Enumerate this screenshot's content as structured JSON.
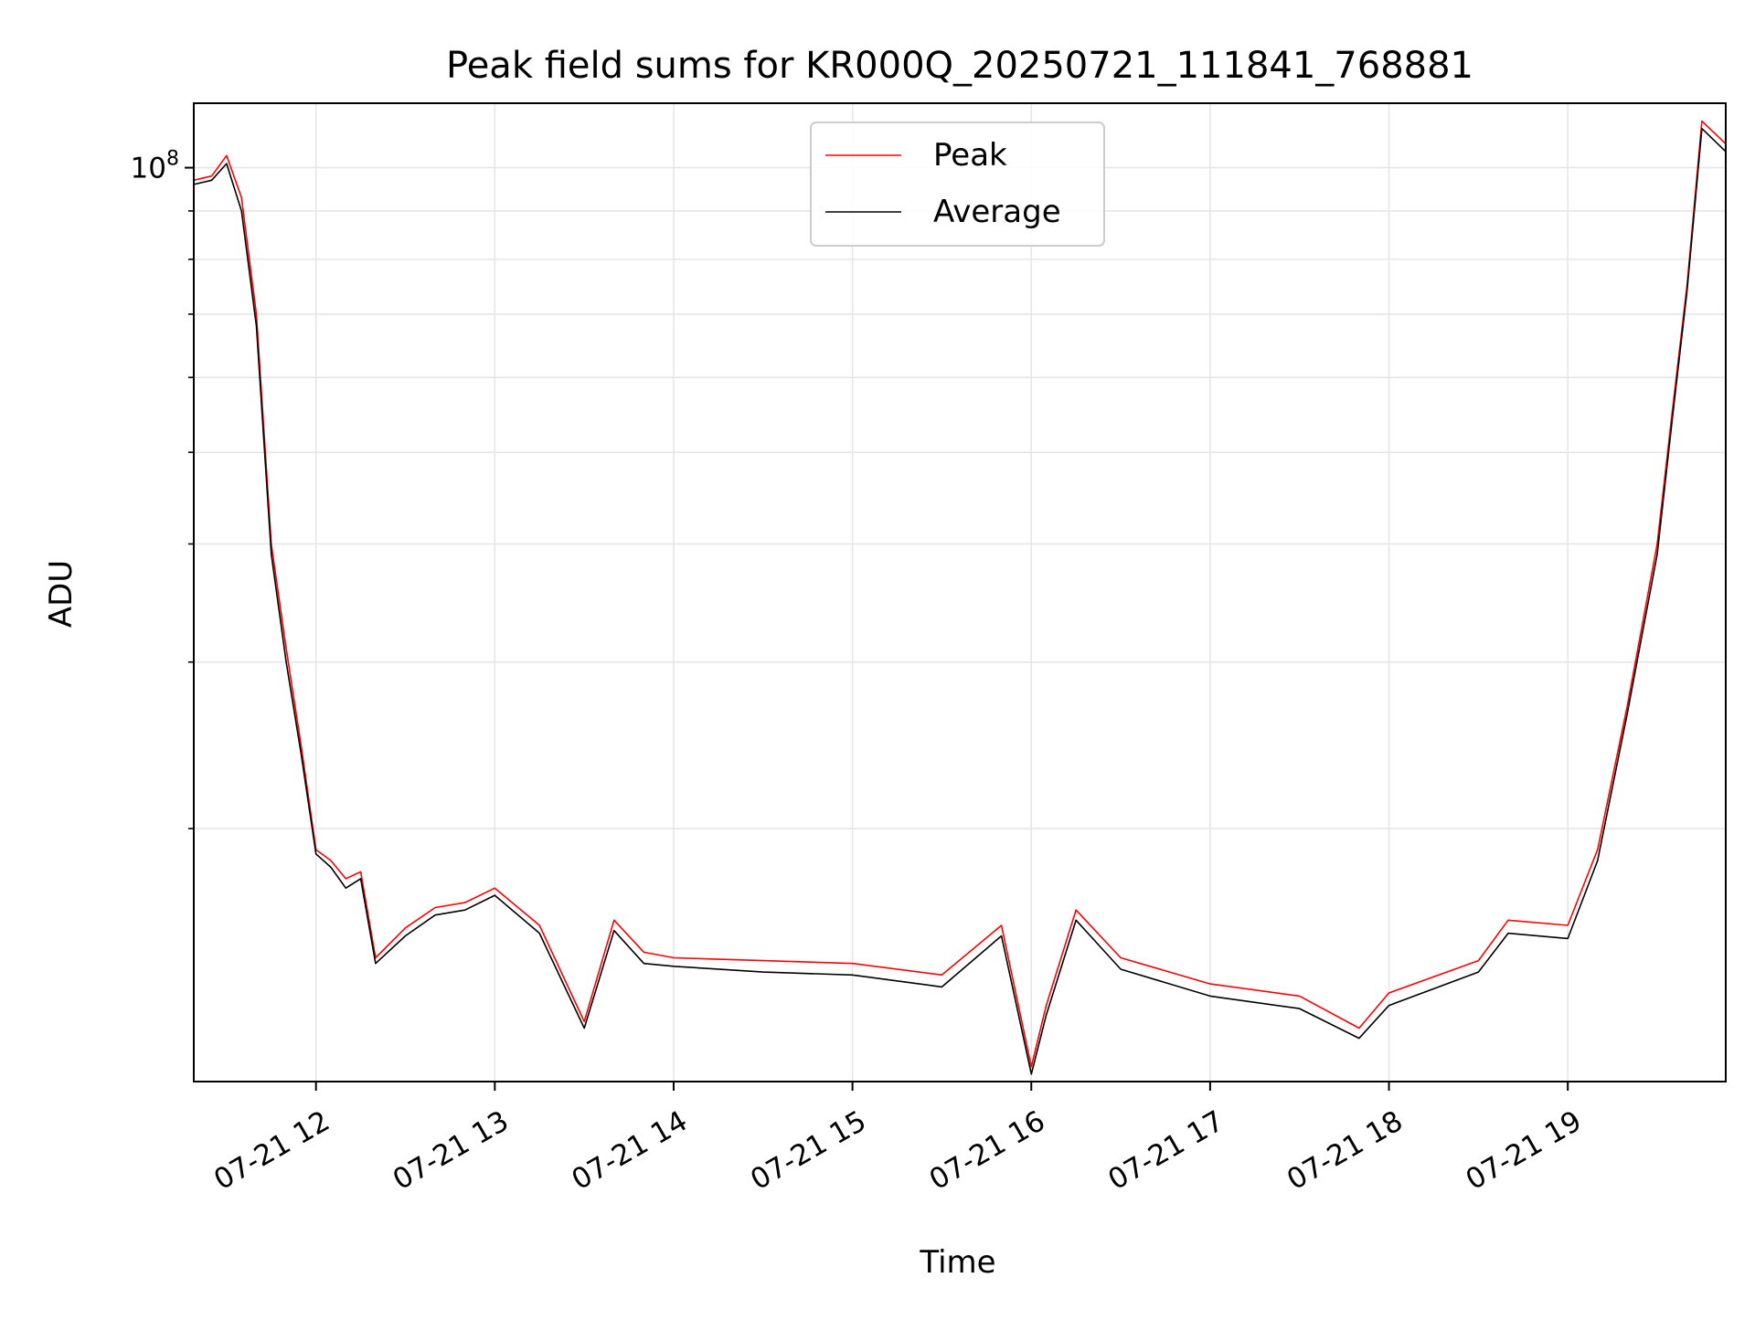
{
  "chart_data": {
    "type": "line",
    "title": "Peak field sums for KR000Q_20250721_111841_768881",
    "xlabel": "Time",
    "ylabel": "ADU",
    "y_scale": "log",
    "ylim": [
      10800000,
      117000000
    ],
    "xlim": [
      "07-21 11:19",
      "07-21 19:53"
    ],
    "grid": true,
    "legend_position": "upper center",
    "x_ticks": [
      "07-21 12",
      "07-21 13",
      "07-21 14",
      "07-21 15",
      "07-21 16",
      "07-21 17",
      "07-21 18",
      "07-21 19"
    ],
    "y_ticks": [
      {
        "value": 100000000,
        "base": "10",
        "exponent": "8"
      }
    ],
    "y_minor_ticks": [
      20000000,
      30000000,
      40000000,
      50000000,
      60000000,
      70000000,
      80000000,
      90000000
    ],
    "x": [
      "07-21 11:19",
      "07-21 11:25",
      "07-21 11:30",
      "07-21 11:35",
      "07-21 11:40",
      "07-21 11:45",
      "07-21 11:50",
      "07-21 11:55",
      "07-21 12:00",
      "07-21 12:05",
      "07-21 12:10",
      "07-21 12:15",
      "07-21 12:20",
      "07-21 12:30",
      "07-21 12:40",
      "07-21 12:50",
      "07-21 13:00",
      "07-21 13:15",
      "07-21 13:30",
      "07-21 13:40",
      "07-21 13:50",
      "07-21 14:00",
      "07-21 14:30",
      "07-21 15:00",
      "07-21 15:30",
      "07-21 15:50",
      "07-21 16:00",
      "07-21 16:05",
      "07-21 16:15",
      "07-21 16:30",
      "07-21 17:00",
      "07-21 17:30",
      "07-21 17:50",
      "07-21 18:00",
      "07-21 18:30",
      "07-21 18:40",
      "07-21 19:00",
      "07-21 19:10",
      "07-21 19:20",
      "07-21 19:30",
      "07-21 19:35",
      "07-21 19:40",
      "07-21 19:45",
      "07-21 19:53"
    ],
    "series": [
      {
        "name": "Peak",
        "color": "#ff0000",
        "values": [
          97000000,
          98000000,
          103000000,
          93000000,
          70000000,
          40000000,
          31000000,
          24500000,
          19000000,
          18500000,
          17700000,
          18000000,
          14600000,
          15700000,
          16500000,
          16700000,
          17300000,
          15800000,
          12500000,
          16000000,
          14800000,
          14600000,
          14500000,
          14400000,
          14000000,
          15800000,
          11200000,
          13000000,
          16400000,
          14600000,
          13700000,
          13300000,
          12300000,
          13400000,
          14500000,
          16000000,
          15800000,
          19000000,
          27000000,
          40000000,
          55000000,
          75000000,
          112000000,
          106000000
        ]
      },
      {
        "name": "Average",
        "color": "#000000",
        "values": [
          96000000,
          97000000,
          101000000,
          90000000,
          68000000,
          39000000,
          30000000,
          24000000,
          18800000,
          18200000,
          17300000,
          17700000,
          14400000,
          15400000,
          16200000,
          16400000,
          17000000,
          15500000,
          12300000,
          15600000,
          14400000,
          14300000,
          14100000,
          14000000,
          13600000,
          15400000,
          11000000,
          12700000,
          16000000,
          14200000,
          13300000,
          12900000,
          12000000,
          13000000,
          14100000,
          15500000,
          15300000,
          18500000,
          26500000,
          39000000,
          54000000,
          74000000,
          110000000,
          104000000
        ]
      }
    ]
  }
}
